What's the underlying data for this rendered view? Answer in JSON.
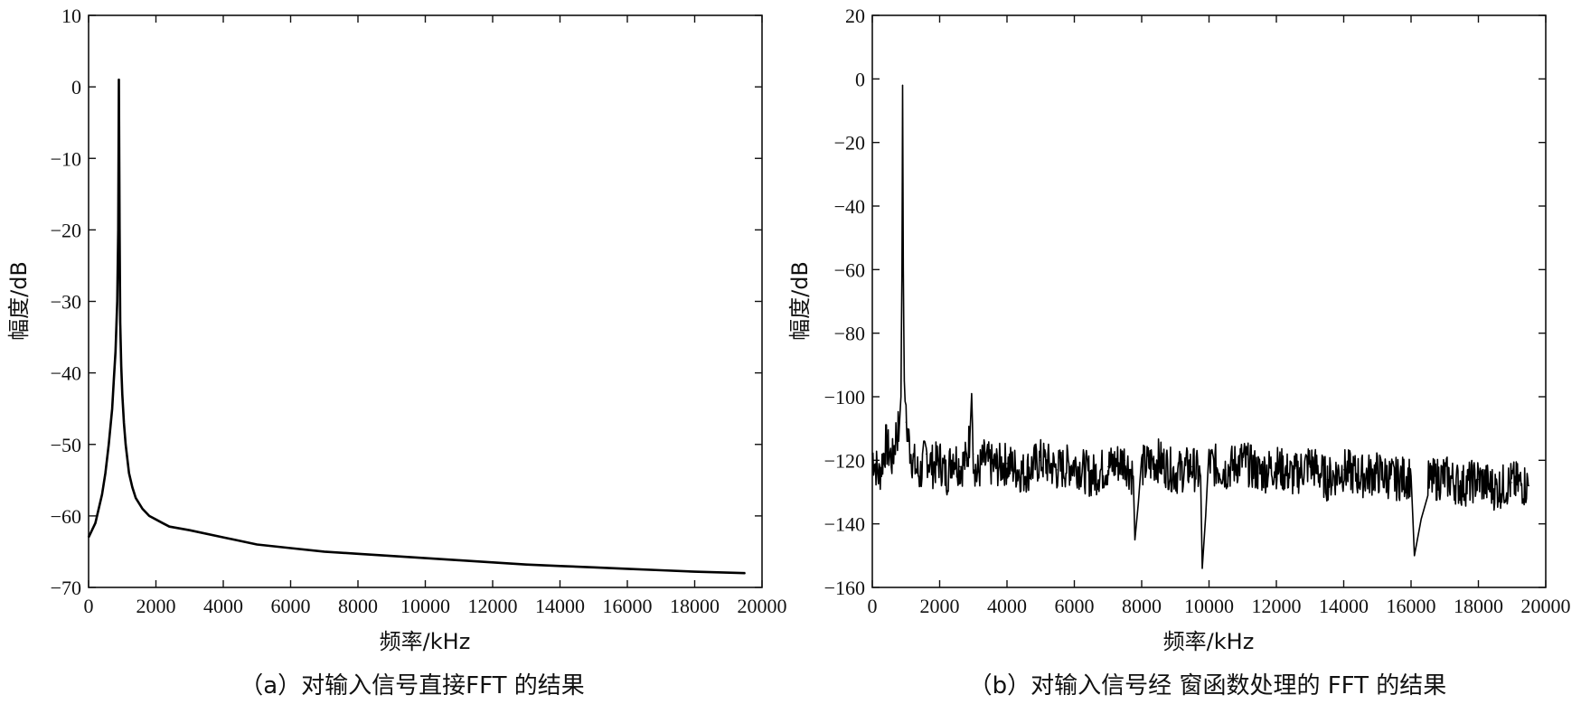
{
  "chart_data": [
    {
      "type": "line",
      "caption": "（a）对输入信号直接FFT 的结果",
      "xlabel": "频率/kHz",
      "ylabel": "幅度/dB",
      "xlim": [
        0,
        20000
      ],
      "ylim": [
        -70,
        10
      ],
      "xticks": [
        0,
        2000,
        4000,
        6000,
        8000,
        10000,
        12000,
        14000,
        16000,
        18000,
        20000
      ],
      "yticks": [
        10,
        0,
        -10,
        -20,
        -30,
        -40,
        -50,
        -60,
        -70
      ],
      "grid": false,
      "series": [
        {
          "x": [
            0,
            200,
            400,
            500,
            600,
            700,
            750,
            800,
            850,
            880,
            900,
            920,
            940,
            970,
            1000,
            1050,
            1100,
            1200,
            1300,
            1400,
            1600,
            1800,
            2000,
            2200,
            2400,
            3000,
            4000,
            5000,
            6000,
            7000,
            8000,
            9000,
            10000,
            11000,
            12000,
            13000,
            14000,
            15000,
            16000,
            17000,
            18000,
            19500
          ],
          "values": [
            -63,
            -61,
            -57,
            -54,
            -50,
            -45,
            -41,
            -37,
            -30,
            -20,
            1,
            -20,
            -33,
            -39,
            -43,
            -47,
            -50,
            -54,
            -56,
            -57.5,
            -59,
            -60,
            -60.5,
            -61,
            -61.5,
            -62,
            -63,
            -64,
            -64.5,
            -65,
            -65.3,
            -65.6,
            -65.9,
            -66.2,
            -66.5,
            -66.8,
            -67,
            -67.2,
            -67.4,
            -67.6,
            -67.8,
            -68
          ]
        }
      ]
    },
    {
      "type": "line",
      "caption": "（b）对输入信号经 窗函数处理的 FFT 的结果",
      "xlabel": "频率/kHz",
      "ylabel": "幅度/dB",
      "xlim": [
        0,
        20000
      ],
      "ylim": [
        -160,
        20
      ],
      "xticks": [
        0,
        2000,
        4000,
        6000,
        8000,
        10000,
        12000,
        14000,
        16000,
        18000,
        20000
      ],
      "yticks": [
        20,
        0,
        -20,
        -40,
        -60,
        -80,
        -100,
        -120,
        -140,
        -160
      ],
      "grid": false,
      "series": [
        {
          "x": [
            0,
            200,
            400,
            600,
            700,
            800,
            850,
            880,
            900,
            920,
            950,
            1000,
            1100,
            1200,
            1400,
            1600,
            1800,
            2000,
            2200,
            2400,
            2600,
            2800,
            2900,
            2950,
            3000,
            3100,
            3300,
            3600,
            4000,
            4500,
            5000,
            5500,
            6000,
            6500,
            7000,
            7500,
            7750,
            7800,
            8000,
            8500,
            9000,
            9500,
            9750,
            9800,
            10000,
            10500,
            11000,
            11500,
            12000,
            12500,
            13000,
            13500,
            14000,
            14500,
            15000,
            15500,
            16000,
            16100,
            16500,
            17000,
            17500,
            18000,
            18500,
            19000,
            19500
          ],
          "values": [
            -118,
            -125,
            -115,
            -120,
            -112,
            -110,
            -100,
            -60,
            -2,
            -60,
            -95,
            -108,
            -115,
            -120,
            -125,
            -118,
            -122,
            -120,
            -125,
            -118,
            -122,
            -120,
            -112,
            -99,
            -118,
            -125,
            -120,
            -122,
            -121,
            -124,
            -120,
            -123,
            -121,
            -125,
            -122,
            -120,
            -125,
            -145,
            -122,
            -120,
            -124,
            -122,
            -125,
            -154,
            -121,
            -123,
            -120,
            -124,
            -122,
            -125,
            -121,
            -126,
            -123,
            -125,
            -124,
            -126,
            -125,
            -150,
            -127,
            -125,
            -128,
            -126,
            -129,
            -127,
            -128
          ]
        }
      ]
    }
  ]
}
